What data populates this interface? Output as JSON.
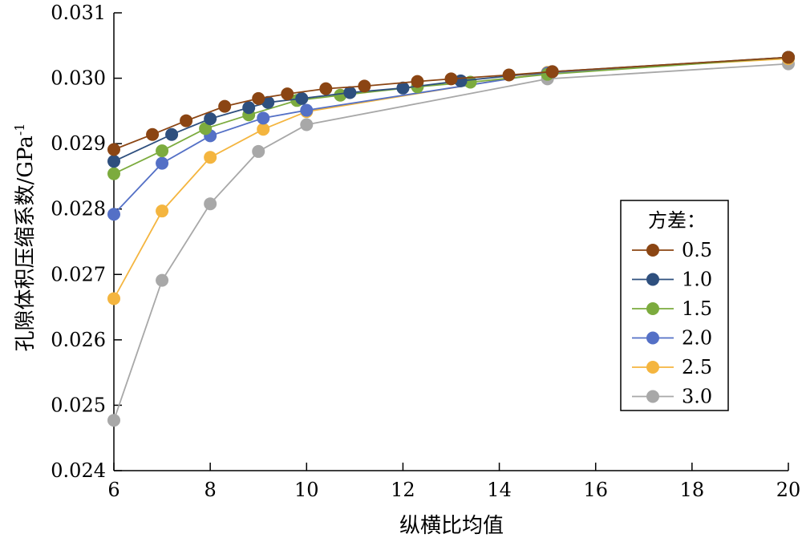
{
  "chart_data": {
    "type": "line",
    "title": "",
    "xlabel": "纵横比均值",
    "ylabel": "孔隙体积压缩系数/GPa",
    "ylabel_sup": "-1",
    "xlim": [
      6,
      20
    ],
    "ylim": [
      0.024,
      0.031
    ],
    "xticks": [
      6,
      8,
      10,
      12,
      14,
      16,
      18,
      20
    ],
    "xtick_labels": [
      "6",
      "8",
      "10",
      "12",
      "14",
      "16",
      "18",
      "20"
    ],
    "yticks": [
      0.024,
      0.025,
      0.026,
      0.027,
      0.028,
      0.029,
      0.03,
      0.031
    ],
    "ytick_labels": [
      "0.024",
      "0.025",
      "0.026",
      "0.027",
      "0.028",
      "0.029",
      "0.030",
      "0.031"
    ],
    "grid": false,
    "legend": {
      "title": "方差：",
      "position": "right"
    },
    "series": [
      {
        "name": "0.5",
        "color": "#8B4513",
        "x": [
          6,
          6.8,
          7.5,
          8.3,
          9.0,
          9.6,
          10.4,
          11.2,
          12.3,
          13.0,
          14.2,
          15.1,
          20
        ],
        "y": [
          0.02891,
          0.02914,
          0.02935,
          0.02957,
          0.02969,
          0.02976,
          0.02984,
          0.02988,
          0.02995,
          0.02999,
          0.03005,
          0.0301,
          0.03032
        ]
      },
      {
        "name": "1.0",
        "color": "#2E4F7E",
        "x": [
          6,
          7.2,
          8.0,
          8.8,
          9.2,
          9.9,
          10.9,
          12.0,
          13.2,
          15.1,
          20
        ],
        "y": [
          0.02873,
          0.02914,
          0.02938,
          0.02955,
          0.02963,
          0.02969,
          0.02978,
          0.02985,
          0.02996,
          0.0301,
          0.03032
        ]
      },
      {
        "name": "1.5",
        "color": "#7CAB3E",
        "x": [
          6,
          7.0,
          7.9,
          8.8,
          9.8,
          10.7,
          12.3,
          13.4,
          15.0,
          20
        ],
        "y": [
          0.02854,
          0.02889,
          0.02923,
          0.02944,
          0.02966,
          0.02974,
          0.02987,
          0.02994,
          0.03006,
          0.03032
        ]
      },
      {
        "name": "2.0",
        "color": "#5470C6",
        "x": [
          6,
          7.0,
          8.0,
          9.1,
          10.0,
          15.0,
          20
        ],
        "y": [
          0.02792,
          0.0287,
          0.02912,
          0.02939,
          0.02951,
          0.03008,
          0.03032
        ]
      },
      {
        "name": "2.5",
        "color": "#F4B53F",
        "x": [
          6,
          7.0,
          8.0,
          9.1,
          10.0,
          15.0,
          20
        ],
        "y": [
          0.02663,
          0.02797,
          0.02879,
          0.02922,
          0.02949,
          0.03009,
          0.0303
        ]
      },
      {
        "name": "3.0",
        "color": "#A8A8A8",
        "x": [
          6,
          7.0,
          8.0,
          9.0,
          10.0,
          15.0,
          20
        ],
        "y": [
          0.02477,
          0.02691,
          0.02808,
          0.02888,
          0.02929,
          0.02999,
          0.03022
        ]
      }
    ]
  }
}
